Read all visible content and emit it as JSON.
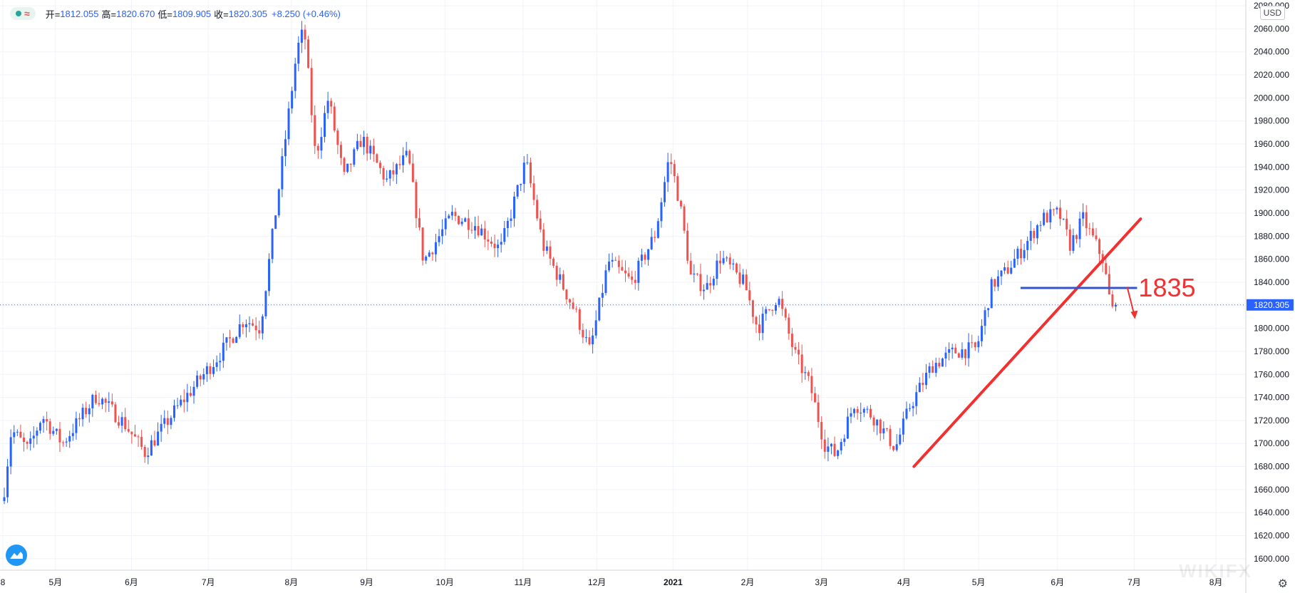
{
  "legend": {
    "open_label": "开=",
    "open": "1812.055",
    "high_label": "高=",
    "high": "1820.670",
    "low_label": "低=",
    "low": "1809.905",
    "close_label": "收=",
    "close": "1820.305",
    "change": "+8.250 (+0.46%)"
  },
  "currency": "USD",
  "watermark": "WIKIFX",
  "colors": {
    "up": "#2962ff",
    "down": "#ef5350",
    "grid": "#f0f3fa",
    "annotation": "#f23030",
    "level": "#3456c8",
    "price_tag": "#2962ff"
  },
  "chart_data": {
    "type": "candlestick",
    "ylim": [
      1590,
      2085
    ],
    "y_ticks": [
      1600,
      1620,
      1640,
      1660,
      1680,
      1700,
      1720,
      1740,
      1760,
      1780,
      1800,
      1820,
      1840,
      1860,
      1880,
      1900,
      1920,
      1940,
      1960,
      1980,
      2000,
      2020,
      2040,
      2060,
      2080
    ],
    "y_tick_labels": [
      "1600.000",
      "1620.000",
      "1640.000",
      "1660.000",
      "1680.000",
      "1700.000",
      "1720.000",
      "1740.000",
      "1760.000",
      "1780.000",
      "1800.000",
      "1820.000",
      "1840.000",
      "1860.000",
      "1880.000",
      "1900.000",
      "1920.000",
      "1940.000",
      "1960.000",
      "1980.000",
      "2000.000",
      "2020.000",
      "2040.000",
      "2060.000",
      "2080.000"
    ],
    "x_ticks": [
      {
        "label": "8",
        "day": 0
      },
      {
        "label": "5月",
        "day": 74
      },
      {
        "label": "6月",
        "day": 181
      },
      {
        "label": "7月",
        "day": 289
      },
      {
        "label": "8月",
        "day": 406
      },
      {
        "label": "9月",
        "day": 512
      },
      {
        "label": "10月",
        "day": 622
      },
      {
        "label": "11月",
        "day": 732
      },
      {
        "label": "12月",
        "day": 836
      },
      {
        "label": "2021",
        "day": 943
      },
      {
        "label": "2月",
        "day": 1048
      },
      {
        "label": "3月",
        "day": 1152
      },
      {
        "label": "4月",
        "day": 1268
      },
      {
        "label": "5月",
        "day": 1373
      },
      {
        "label": "6月",
        "day": 1484
      },
      {
        "label": "7月",
        "day": 1592
      },
      {
        "label": "8月",
        "day": 1707
      }
    ],
    "x_range": [
      0,
      1745
    ],
    "anchors": [
      {
        "day": 0,
        "price": 1650
      },
      {
        "day": 12,
        "price": 1712
      },
      {
        "day": 36,
        "price": 1694
      },
      {
        "day": 55,
        "price": 1724
      },
      {
        "day": 84,
        "price": 1700
      },
      {
        "day": 132,
        "price": 1742
      },
      {
        "day": 170,
        "price": 1718
      },
      {
        "day": 200,
        "price": 1692
      },
      {
        "day": 244,
        "price": 1730
      },
      {
        "day": 306,
        "price": 1778
      },
      {
        "day": 340,
        "price": 1808
      },
      {
        "day": 362,
        "price": 1800
      },
      {
        "day": 388,
        "price": 1920
      },
      {
        "day": 414,
        "price": 2042
      },
      {
        "day": 424,
        "price": 2060
      },
      {
        "day": 440,
        "price": 1948
      },
      {
        "day": 458,
        "price": 2000
      },
      {
        "day": 480,
        "price": 1930
      },
      {
        "day": 505,
        "price": 1965
      },
      {
        "day": 540,
        "price": 1928
      },
      {
        "day": 570,
        "price": 1950
      },
      {
        "day": 592,
        "price": 1858
      },
      {
        "day": 632,
        "price": 1898
      },
      {
        "day": 665,
        "price": 1890
      },
      {
        "day": 700,
        "price": 1868
      },
      {
        "day": 736,
        "price": 1945
      },
      {
        "day": 760,
        "price": 1872
      },
      {
        "day": 805,
        "price": 1815
      },
      {
        "day": 826,
        "price": 1780
      },
      {
        "day": 852,
        "price": 1858
      },
      {
        "day": 885,
        "price": 1840
      },
      {
        "day": 918,
        "price": 1882
      },
      {
        "day": 938,
        "price": 1950
      },
      {
        "day": 952,
        "price": 1910
      },
      {
        "day": 968,
        "price": 1845
      },
      {
        "day": 990,
        "price": 1835
      },
      {
        "day": 1010,
        "price": 1862
      },
      {
        "day": 1044,
        "price": 1838
      },
      {
        "day": 1062,
        "price": 1800
      },
      {
        "day": 1090,
        "price": 1828
      },
      {
        "day": 1114,
        "price": 1778
      },
      {
        "day": 1136,
        "price": 1750
      },
      {
        "day": 1156,
        "price": 1700
      },
      {
        "day": 1172,
        "price": 1690
      },
      {
        "day": 1198,
        "price": 1735
      },
      {
        "day": 1224,
        "price": 1724
      },
      {
        "day": 1256,
        "price": 1696
      },
      {
        "day": 1276,
        "price": 1732
      },
      {
        "day": 1308,
        "price": 1768
      },
      {
        "day": 1340,
        "price": 1780
      },
      {
        "day": 1370,
        "price": 1782
      },
      {
        "day": 1392,
        "price": 1838
      },
      {
        "day": 1410,
        "price": 1848
      },
      {
        "day": 1438,
        "price": 1872
      },
      {
        "day": 1462,
        "price": 1895
      },
      {
        "day": 1486,
        "price": 1900
      },
      {
        "day": 1502,
        "price": 1872
      },
      {
        "day": 1520,
        "price": 1895
      },
      {
        "day": 1548,
        "price": 1860
      },
      {
        "day": 1560,
        "price": 1815
      },
      {
        "day": 1566,
        "price": 1818
      }
    ],
    "last_price": 1820.305,
    "last_price_label": "1820.305",
    "annotations": {
      "trendline": {
        "from": {
          "day": 1282,
          "price": 1680
        },
        "to": {
          "day": 1601,
          "price": 1895
        }
      },
      "level": {
        "price": 1835,
        "from_day": 1432,
        "to_day": 1596,
        "label": "1835"
      },
      "arrow": {
        "from": {
          "day": 1582,
          "price": 1836
        },
        "to": {
          "day": 1592,
          "price": 1808
        }
      }
    }
  }
}
